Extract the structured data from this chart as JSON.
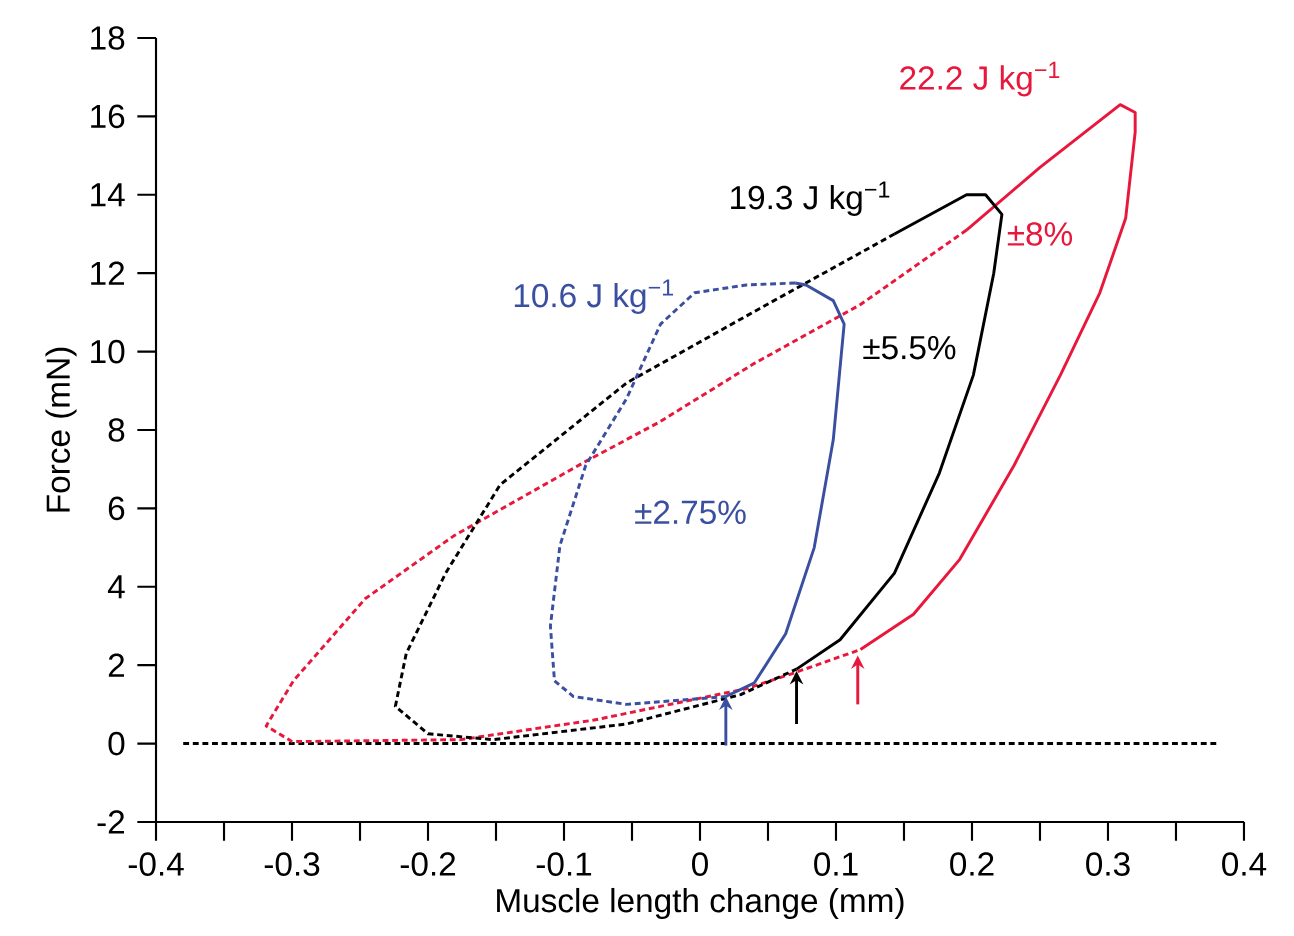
{
  "chart_data": {
    "type": "line",
    "xlabel": "Muscle length change (mm)",
    "ylabel": "Force (mN)",
    "xlim": [
      -0.4,
      0.4
    ],
    "ylim": [
      -2,
      18
    ],
    "xticks": [
      -0.4,
      {
        "value": -0.35,
        "label": null
      },
      -0.3,
      {
        "value": -0.25,
        "label": null
      },
      -0.2,
      {
        "value": -0.15,
        "label": null
      },
      -0.1,
      {
        "value": -0.05,
        "label": null
      },
      0,
      {
        "value": 0.05,
        "label": null
      },
      0.1,
      {
        "value": 0.15,
        "label": null
      },
      0.2,
      {
        "value": 0.25,
        "label": null
      },
      0.3,
      {
        "value": 0.35,
        "label": null
      },
      0.4
    ],
    "yticks": [
      -2,
      0,
      2,
      4,
      6,
      8,
      10,
      12,
      14,
      16,
      18
    ],
    "grid": false,
    "series": [
      {
        "color": "#000000",
        "line_style": "dashed",
        "x": [
          -0.38,
          0.38
        ],
        "values": [
          0,
          0
        ]
      },
      {
        "color": "#e8173c",
        "line_style": "solid",
        "x": [
          0.118,
          0.157,
          0.191,
          0.231,
          0.265,
          0.294,
          0.313,
          0.32,
          0.32,
          0.309,
          0.25,
          0.196
        ],
        "values": [
          2.4,
          3.3,
          4.7,
          7.1,
          9.4,
          11.5,
          13.4,
          15.6,
          16.1,
          16.3,
          14.7,
          13.1
        ]
      },
      {
        "color": "#e8173c",
        "line_style": "dashed",
        "x": [
          0.196,
          0.118,
          0.04,
          -0.03,
          -0.084,
          -0.181,
          -0.246,
          -0.299,
          -0.319,
          -0.3,
          -0.176,
          -0.078,
          0.034,
          0.069,
          0.118
        ],
        "values": [
          13.1,
          11.2,
          9.7,
          8.2,
          7.2,
          5.3,
          3.7,
          1.6,
          0.45,
          0.05,
          0.1,
          0.6,
          1.4,
          1.8,
          2.4
        ]
      },
      {
        "color": "#000000",
        "line_style": "solid",
        "x": [
          0.071,
          0.103,
          0.143,
          0.176,
          0.201,
          0.216,
          0.222,
          0.21,
          0.196,
          0.143
        ],
        "values": [
          1.9,
          2.65,
          4.35,
          6.9,
          9.4,
          12.0,
          13.5,
          14.0,
          14.0,
          13.0
        ]
      },
      {
        "color": "#000000",
        "line_style": "dashed",
        "x": [
          0.143,
          0.044,
          -0.054,
          -0.147,
          -0.187,
          -0.216,
          -0.224,
          -0.2,
          -0.152,
          -0.054,
          0.03,
          0.071
        ],
        "values": [
          13.0,
          11.1,
          9.2,
          6.6,
          4.35,
          2.3,
          0.95,
          0.25,
          0.1,
          0.5,
          1.25,
          1.9
        ]
      },
      {
        "color": "#3a4fa0",
        "line_style": "solid",
        "x": [
          0.019,
          0.04,
          0.063,
          0.084,
          0.098,
          0.106,
          0.098,
          0.078,
          0.07
        ],
        "values": [
          1.2,
          1.55,
          2.8,
          5.0,
          7.75,
          10.7,
          11.3,
          11.7,
          11.75
        ]
      },
      {
        "color": "#3a4fa0",
        "line_style": "dashed",
        "x": [
          0.07,
          0.034,
          -0.004,
          -0.029,
          -0.054,
          -0.084,
          -0.103,
          -0.11,
          -0.107,
          -0.093,
          -0.054,
          0.019
        ],
        "values": [
          11.75,
          11.7,
          11.5,
          10.7,
          8.8,
          7.1,
          5.05,
          3.0,
          1.6,
          1.2,
          1.0,
          1.2
        ]
      }
    ],
    "annotations": [
      "22.2 J kg$^{−1}$",
      "19.3 J kg$^{−1}$",
      "10.6 J kg$^{−1}$",
      "±8%",
      "±5.5%",
      "±2.75%"
    ]
  }
}
